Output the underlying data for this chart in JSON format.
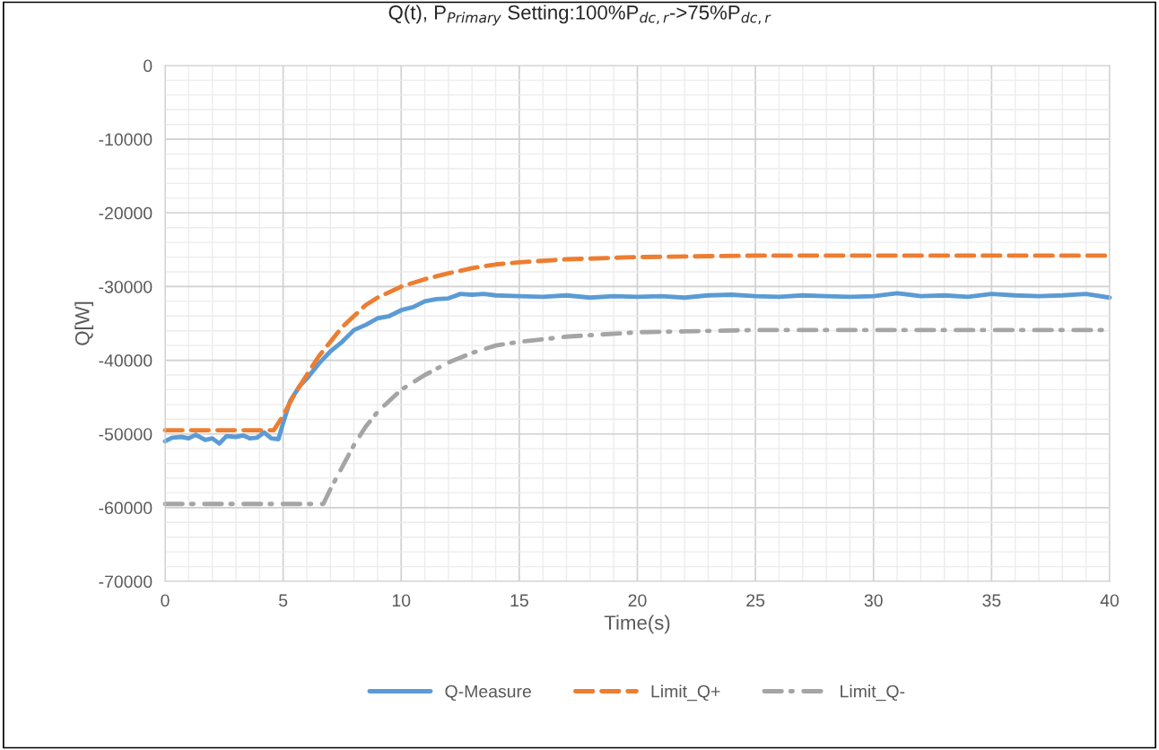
{
  "chart_data": {
    "type": "line",
    "title": "Q(t), P$_{Primary}$ Setting:100%P$_{dc,r}$->75%P$_{dc,r}$",
    "xlabel": "Time(s)",
    "ylabel": "Q[W]",
    "xlim": [
      0,
      40
    ],
    "xticks": [
      0,
      5,
      10,
      15,
      20,
      25,
      30,
      35,
      40
    ],
    "ylim": [
      -70000,
      0
    ],
    "yticks": [
      -70000,
      -60000,
      -50000,
      -40000,
      -30000,
      -20000,
      -10000,
      0
    ],
    "grid": true,
    "legend": "bottom",
    "series": [
      {
        "name": "Q-Measure",
        "color": "#5b9bd5",
        "line_style": "solid",
        "x": [
          0,
          0.3,
          0.7,
          1,
          1.3,
          1.7,
          2,
          2.3,
          2.6,
          3,
          3.3,
          3.6,
          3.9,
          4.2,
          4.5,
          4.8,
          5,
          5.3,
          5.7,
          6,
          6.5,
          7,
          7.5,
          8,
          8.5,
          9,
          9.5,
          10,
          10.5,
          11,
          11.5,
          12,
          12.5,
          13,
          13.5,
          14,
          15,
          16,
          17,
          18,
          19,
          20,
          21,
          22,
          23,
          24,
          25,
          26,
          27,
          28,
          29,
          30,
          31,
          32,
          33,
          34,
          35,
          36,
          37,
          38,
          39,
          40
        ],
        "values": [
          -51000,
          -50500,
          -50400,
          -50600,
          -50100,
          -50800,
          -50600,
          -51300,
          -50300,
          -50400,
          -50200,
          -50600,
          -50500,
          -49800,
          -50600,
          -50700,
          -48500,
          -45500,
          -43500,
          -42500,
          -40500,
          -38800,
          -37500,
          -35900,
          -35200,
          -34300,
          -34000,
          -33200,
          -32800,
          -32000,
          -31700,
          -31600,
          -31000,
          -31100,
          -31000,
          -31200,
          -31300,
          -31400,
          -31200,
          -31500,
          -31300,
          -31400,
          -31300,
          -31500,
          -31200,
          -31100,
          -31300,
          -31400,
          -31200,
          -31300,
          -31400,
          -31300,
          -30900,
          -31300,
          -31200,
          -31400,
          -31000,
          -31200,
          -31300,
          -31200,
          -31000,
          -31500
        ]
      },
      {
        "name": "Limit_Q+",
        "color": "#ed7d31",
        "line_style": "dashed",
        "x": [
          0,
          4.6,
          5,
          5.5,
          6,
          6.5,
          7,
          7.5,
          8,
          8.5,
          9,
          10,
          11,
          12,
          13,
          14,
          15,
          17,
          20,
          25,
          30,
          35,
          40
        ],
        "values": [
          -49500,
          -49500,
          -47500,
          -44500,
          -42000,
          -39500,
          -37500,
          -35500,
          -34000,
          -32500,
          -31500,
          -30000,
          -29000,
          -28200,
          -27500,
          -27000,
          -26700,
          -26300,
          -26000,
          -25800,
          -25800,
          -25800,
          -25800
        ]
      },
      {
        "name": "Limit_Q-",
        "color": "#a5a5a5",
        "line_style": "dashdot",
        "x": [
          0,
          6.7,
          7,
          7.5,
          8,
          8.5,
          9,
          10,
          11,
          12,
          13,
          14,
          15,
          17,
          20,
          25,
          30,
          35,
          40
        ],
        "values": [
          -59500,
          -59500,
          -57500,
          -54500,
          -51500,
          -49000,
          -47000,
          -44000,
          -42000,
          -40300,
          -39000,
          -38000,
          -37500,
          -36800,
          -36200,
          -35900,
          -35900,
          -35900,
          -35900
        ]
      }
    ]
  }
}
